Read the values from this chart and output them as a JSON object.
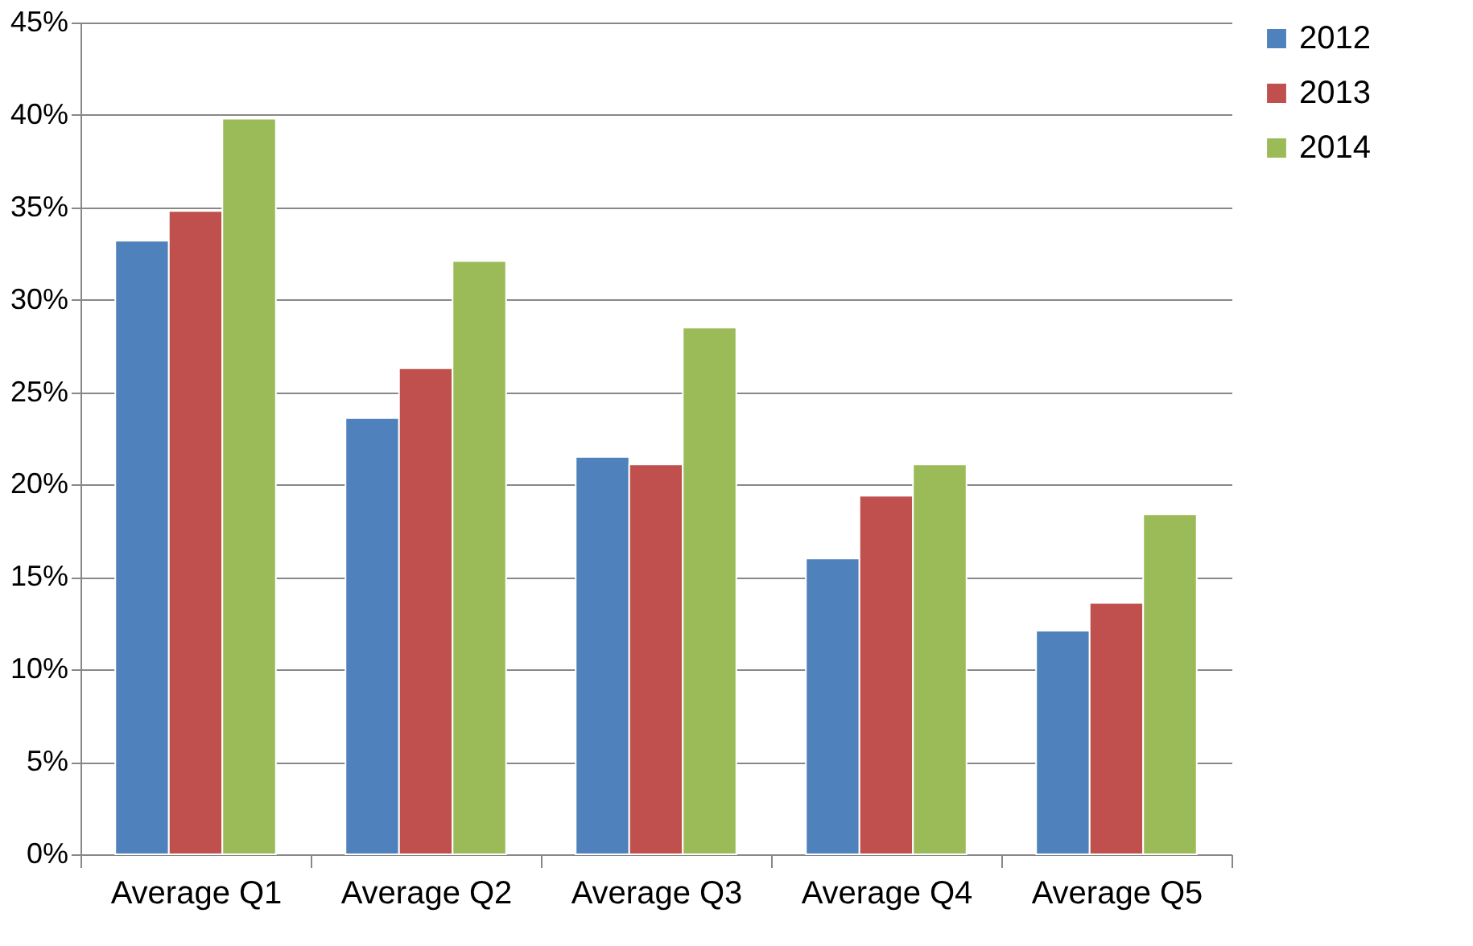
{
  "chart_data": {
    "type": "bar",
    "categories": [
      "Average Q1",
      "Average Q2",
      "Average Q3",
      "Average Q4",
      "Average Q5"
    ],
    "series": [
      {
        "name": "2012",
        "color": "#4f81bd",
        "values": [
          33.2,
          23.6,
          21.5,
          16.0,
          12.1
        ]
      },
      {
        "name": "2013",
        "color": "#c0504d",
        "values": [
          34.8,
          26.3,
          21.1,
          19.4,
          13.6
        ]
      },
      {
        "name": "2014",
        "color": "#9bbb59",
        "values": [
          39.8,
          32.1,
          28.5,
          21.1,
          18.4
        ]
      }
    ],
    "ylim": [
      0,
      45
    ],
    "yticks": [
      {
        "value": 0,
        "label": "0%"
      },
      {
        "value": 5,
        "label": "5%"
      },
      {
        "value": 10,
        "label": "10%"
      },
      {
        "value": 15,
        "label": "15%"
      },
      {
        "value": 20,
        "label": "20%"
      },
      {
        "value": 25,
        "label": "25%"
      },
      {
        "value": 30,
        "label": "30%"
      },
      {
        "value": 35,
        "label": "35%"
      },
      {
        "value": 40,
        "label": "40%"
      },
      {
        "value": 45,
        "label": "45%"
      }
    ],
    "grid": "y",
    "legend": "right"
  }
}
